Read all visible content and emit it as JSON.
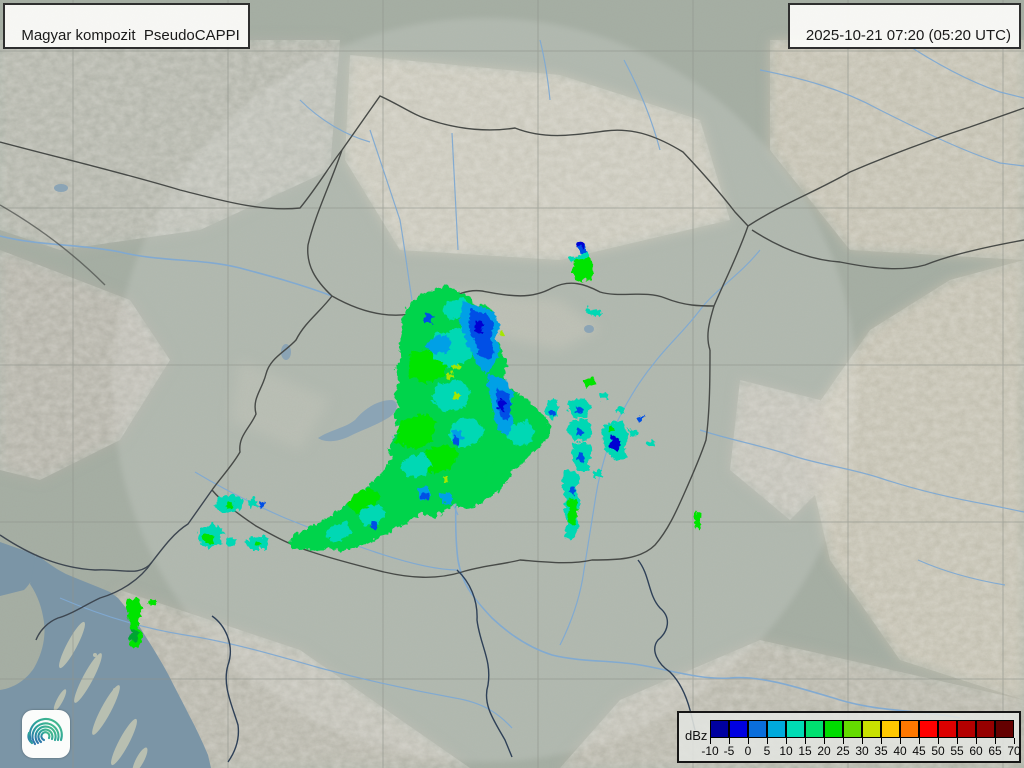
{
  "header": {
    "product_label": "Magyar kompozit  PseudoCAPPI",
    "timestamp_label": "2025-10-21 07:20 (05:20 UTC)"
  },
  "legend": {
    "unit_label": "dBz",
    "tick_labels": [
      "-10",
      "-5",
      "0",
      "5",
      "10",
      "15",
      "20",
      "25",
      "30",
      "35",
      "40",
      "45",
      "50",
      "55",
      "60",
      "65",
      "70"
    ],
    "colors": [
      "#0000A0",
      "#0000E1",
      "#0A6EDC",
      "#00AADC",
      "#00DCB4",
      "#00E070",
      "#00DC00",
      "#64DC00",
      "#C8E100",
      "#FFC800",
      "#FF7800",
      "#FF0000",
      "#DC0000",
      "#B40000",
      "#960000",
      "#640000"
    ]
  },
  "radar_palette": {
    "e-green": "#00D44B",
    "e-bright-green": "#00E400",
    "e-dark-green": "#00A532",
    "e-cyan": "#00D8B4",
    "e-light-blue": "#00A0E6",
    "e-blue": "#0050E6",
    "e-dark-blue": "#0000D2",
    "e-yellow-green": "#A5E600"
  },
  "logo": {
    "name": "hungaromet-spiral-logo"
  }
}
